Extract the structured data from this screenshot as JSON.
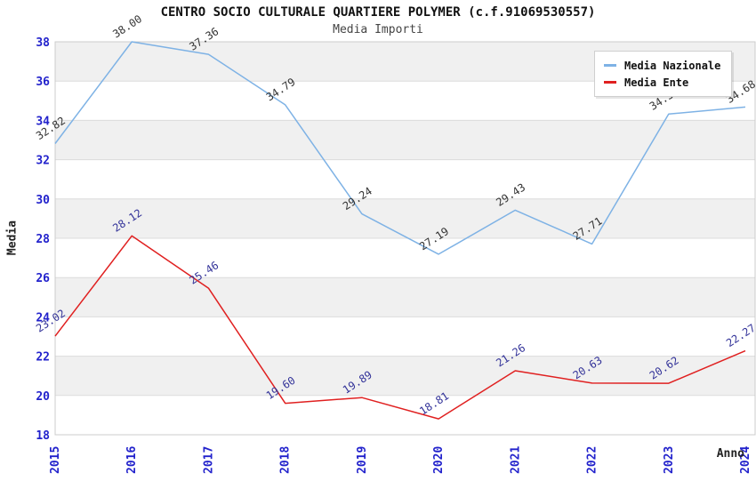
{
  "chart": {
    "title": "CENTRO SOCIO CULTURALE QUARTIERE POLYMER (c.f.91069530557)",
    "subtitle": "Media Importi"
  },
  "chart_data": {
    "type": "line",
    "x": [
      "2015",
      "2016",
      "2017",
      "2018",
      "2019",
      "2020",
      "2021",
      "2022",
      "2023",
      "2024"
    ],
    "series": [
      {
        "name": "Media Nazionale",
        "color": "#7EB2E5",
        "label_color": "#333333",
        "values": [
          32.82,
          38.0,
          37.36,
          34.79,
          29.24,
          27.19,
          29.43,
          27.71,
          34.32,
          34.68
        ]
      },
      {
        "name": "Media Ente",
        "color": "#E02020",
        "label_color": "#333399",
        "values": [
          23.02,
          28.12,
          25.46,
          19.6,
          19.89,
          18.81,
          21.26,
          20.63,
          20.62,
          22.27
        ]
      }
    ],
    "xlabel": "Anno",
    "ylabel": "Media",
    "ylim": [
      18,
      38
    ],
    "y_tick_step": 2,
    "grid": "horizontal-bands",
    "legend_position": "top-right",
    "tick_color": "#2222CC",
    "band_color": "#F0F0F0",
    "grid_color": "#DCDCDC",
    "border_color": "#CCCCCC"
  }
}
